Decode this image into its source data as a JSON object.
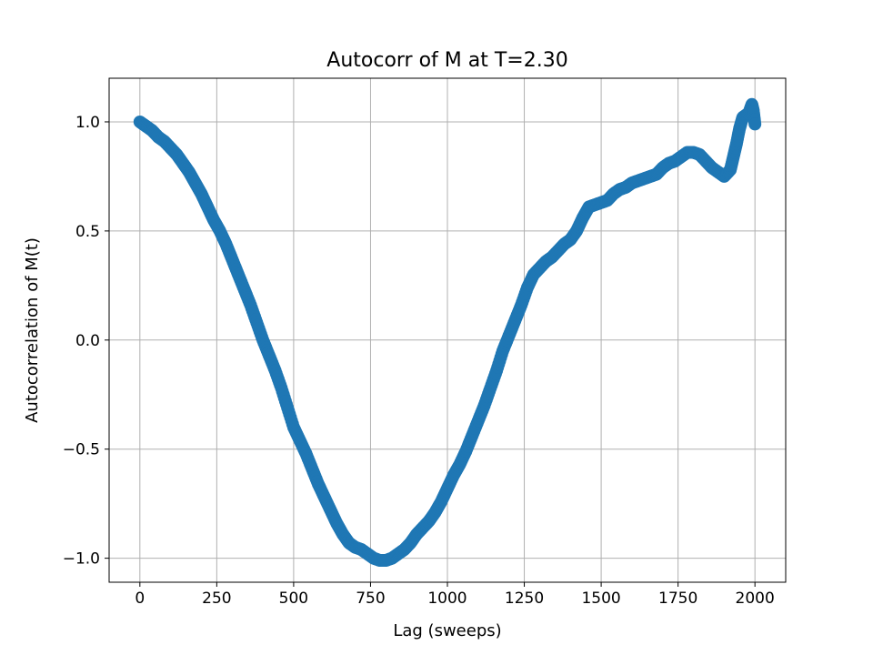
{
  "colors": {
    "series": "#1f77b4",
    "grid": "#b0b0b0",
    "axis": "#000000",
    "background": "#ffffff"
  },
  "chart_data": {
    "type": "scatter",
    "title": "Autocorr of M at T=2.30",
    "xlabel": "Lag (sweeps)",
    "ylabel": "Autocorrelation of M(t)",
    "xlim": [
      -100,
      2100
    ],
    "ylim": [
      -1.11,
      1.2
    ],
    "xticks": [
      0,
      250,
      500,
      750,
      1000,
      1250,
      1500,
      1750,
      2000
    ],
    "yticks": [
      -1.0,
      -0.5,
      0.0,
      0.5,
      1.0
    ],
    "xtick_labels": [
      "0",
      "250",
      "500",
      "750",
      "1000",
      "1250",
      "1500",
      "1750",
      "2000"
    ],
    "ytick_labels": [
      "−1.0",
      "−0.5",
      "0.0",
      "0.5",
      "1.0"
    ],
    "grid": true,
    "marker": "circle",
    "series": [
      {
        "x": [
          0,
          20,
          40,
          60,
          80,
          100,
          120,
          140,
          160,
          180,
          200,
          220,
          240,
          260,
          280,
          300,
          320,
          340,
          360,
          380,
          400,
          420,
          440,
          460,
          480,
          500,
          520,
          540,
          560,
          580,
          600,
          620,
          640,
          660,
          680,
          700,
          720,
          740,
          760,
          780,
          800,
          820,
          840,
          860,
          880,
          900,
          920,
          940,
          960,
          980,
          1000,
          1020,
          1040,
          1060,
          1080,
          1100,
          1120,
          1140,
          1160,
          1180,
          1200,
          1220,
          1240,
          1260,
          1280,
          1300,
          1320,
          1340,
          1360,
          1380,
          1400,
          1420,
          1440,
          1460,
          1480,
          1500,
          1520,
          1540,
          1560,
          1580,
          1600,
          1620,
          1640,
          1660,
          1680,
          1700,
          1720,
          1740,
          1760,
          1780,
          1800,
          1820,
          1840,
          1860,
          1880,
          1900,
          1920,
          1930,
          1940,
          1950,
          1960,
          1970,
          1980,
          1990,
          1995,
          2000
        ],
        "y": [
          1.0,
          0.98,
          0.96,
          0.93,
          0.91,
          0.88,
          0.85,
          0.81,
          0.77,
          0.72,
          0.67,
          0.61,
          0.55,
          0.5,
          0.44,
          0.37,
          0.3,
          0.23,
          0.16,
          0.08,
          0.0,
          -0.07,
          -0.14,
          -0.22,
          -0.31,
          -0.4,
          -0.46,
          -0.52,
          -0.59,
          -0.66,
          -0.72,
          -0.78,
          -0.84,
          -0.89,
          -0.93,
          -0.95,
          -0.96,
          -0.98,
          -1.0,
          -1.01,
          -1.01,
          -1.0,
          -0.98,
          -0.96,
          -0.93,
          -0.89,
          -0.86,
          -0.83,
          -0.79,
          -0.74,
          -0.68,
          -0.62,
          -0.57,
          -0.51,
          -0.44,
          -0.37,
          -0.3,
          -0.22,
          -0.14,
          -0.05,
          0.02,
          0.09,
          0.16,
          0.24,
          0.3,
          0.33,
          0.36,
          0.38,
          0.41,
          0.44,
          0.46,
          0.5,
          0.56,
          0.61,
          0.62,
          0.63,
          0.64,
          0.67,
          0.69,
          0.7,
          0.72,
          0.73,
          0.74,
          0.75,
          0.76,
          0.79,
          0.81,
          0.82,
          0.84,
          0.86,
          0.86,
          0.85,
          0.82,
          0.79,
          0.77,
          0.75,
          0.78,
          0.84,
          0.9,
          0.97,
          1.02,
          1.03,
          1.04,
          1.08,
          1.05,
          0.99
        ]
      }
    ]
  }
}
